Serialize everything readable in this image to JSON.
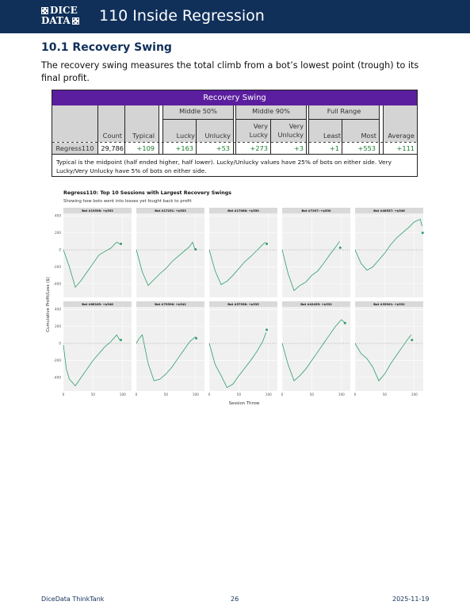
{
  "header": {
    "logo_line1": "DICE",
    "logo_line2": "DATA",
    "title": "110 Inside Regression"
  },
  "section": {
    "title": "10.1 Recovery Swing",
    "intro": "The recovery swing measures the total climb from a bot’s lowest point (trough) to its final profit."
  },
  "table": {
    "banner": "Recovery Swing",
    "groups": {
      "mid50": "Middle 50%",
      "mid90": "Middle 90%",
      "full": "Full Range"
    },
    "columns": {
      "count": "Count",
      "typical": "Typical",
      "lucky": "Lucky",
      "unlucky": "Unlucky",
      "very_lucky": "Very Lucky",
      "very_unlucky": "Very Unlucky",
      "least": "Least",
      "most": "Most",
      "average": "Average"
    },
    "row": {
      "name": "Regress110",
      "count": "29,786",
      "typical": "+109",
      "lucky": "+163",
      "unlucky": "+53",
      "very_lucky": "+273",
      "very_unlucky": "+3",
      "least": "+1",
      "most": "+553",
      "average": "+111"
    },
    "note": "Typical is the midpoint (half ended higher, half lower). Lucky/Unlucky values have 25% of bots on either side. Very Lucky/Very Unlucky have 5% of bots on either side."
  },
  "chart_data": {
    "type": "line",
    "title": "Regress110: Top 10 Sessions with Largest Recovery Swings",
    "subtitle": "Showing how bots went into losses yet fought back to profit",
    "xlabel": "Session Throw",
    "ylabel": "Cumulative Profit/Loss ($)",
    "xlim": [
      0,
      115
    ],
    "ylim": [
      -560,
      430
    ],
    "xticks": [
      0,
      50,
      100
    ],
    "yticks": [
      -400,
      -200,
      0,
      200,
      400
    ],
    "line_color": "#2e9e6b",
    "panels": [
      {
        "label": "Bot #19598: +$553",
        "x": [
          0,
          10,
          20,
          30,
          40,
          50,
          60,
          70,
          80,
          90,
          95
        ],
        "y": [
          0,
          -200,
          -440,
          -360,
          -260,
          -160,
          -60,
          -20,
          20,
          90,
          70
        ],
        "end": [
          97,
          70
        ]
      },
      {
        "label": "Bot #17251: +$553",
        "x": [
          0,
          10,
          20,
          30,
          40,
          50,
          60,
          70,
          80,
          90,
          95,
          99
        ],
        "y": [
          0,
          -260,
          -420,
          -350,
          -280,
          -220,
          -140,
          -80,
          -20,
          40,
          90,
          5
        ],
        "end": [
          100,
          5
        ]
      },
      {
        "label": "Bot #17068: +$550",
        "x": [
          0,
          10,
          20,
          30,
          40,
          50,
          60,
          70,
          80,
          90,
          95
        ],
        "y": [
          0,
          -250,
          -410,
          -370,
          -300,
          -220,
          -140,
          -80,
          -10,
          60,
          90
        ],
        "end": [
          97,
          70
        ]
      },
      {
        "label": "Bot #7207: +$550",
        "x": [
          0,
          10,
          20,
          30,
          40,
          50,
          60,
          70,
          80,
          90,
          97
        ],
        "y": [
          0,
          -280,
          -480,
          -420,
          -380,
          -300,
          -250,
          -160,
          -60,
          30,
          100
        ],
        "end": [
          98,
          25
        ]
      },
      {
        "label": "Bot #46557: +$546",
        "x": [
          0,
          10,
          20,
          30,
          40,
          50,
          60,
          70,
          80,
          90,
          100,
          110,
          113
        ],
        "y": [
          0,
          -160,
          -240,
          -200,
          -120,
          -40,
          60,
          140,
          200,
          260,
          330,
          360,
          280
        ],
        "end": [
          114,
          200
        ]
      },
      {
        "label": "Bot #66165: +$546",
        "x": [
          0,
          5,
          10,
          20,
          30,
          40,
          50,
          60,
          70,
          80,
          90,
          95
        ],
        "y": [
          -20,
          -300,
          -420,
          -500,
          -400,
          -300,
          -200,
          -120,
          -40,
          20,
          100,
          40
        ],
        "end": [
          97,
          40
        ]
      },
      {
        "label": "Bot #79596: +$542",
        "x": [
          0,
          5,
          10,
          20,
          30,
          40,
          50,
          60,
          70,
          80,
          90,
          100
        ],
        "y": [
          0,
          60,
          100,
          -240,
          -440,
          -420,
          -360,
          -280,
          -180,
          -80,
          20,
          80
        ],
        "end": [
          101,
          60
        ]
      },
      {
        "label": "Bot #57958: +$535",
        "x": [
          0,
          10,
          20,
          30,
          40,
          50,
          60,
          70,
          80,
          90,
          96
        ],
        "y": [
          0,
          -250,
          -380,
          -520,
          -480,
          -380,
          -290,
          -200,
          -100,
          20,
          130
        ],
        "end": [
          97,
          160
        ]
      },
      {
        "label": "Bot #42455: +$532",
        "x": [
          0,
          10,
          20,
          30,
          40,
          50,
          60,
          70,
          80,
          90,
          100,
          106
        ],
        "y": [
          0,
          -250,
          -440,
          -380,
          -300,
          -200,
          -100,
          0,
          100,
          200,
          280,
          240
        ],
        "end": [
          106,
          240
        ]
      },
      {
        "label": "Bot #35901: +$532",
        "x": [
          0,
          10,
          20,
          30,
          40,
          50,
          60,
          70,
          80,
          90,
          95
        ],
        "y": [
          0,
          -120,
          -180,
          -280,
          -440,
          -360,
          -240,
          -140,
          -40,
          60,
          100
        ],
        "end": [
          96,
          40
        ]
      }
    ]
  },
  "footer": {
    "left": "DiceData ThinkTank",
    "page": "26",
    "date": "2025-11-19"
  }
}
